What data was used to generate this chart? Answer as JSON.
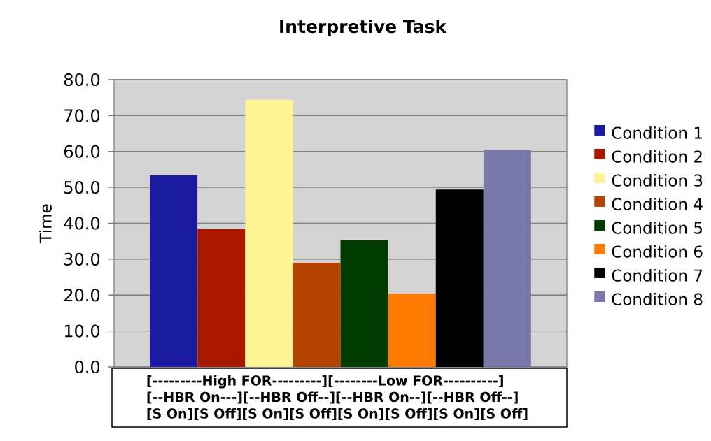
{
  "chart_data": {
    "type": "bar",
    "title": "Interpretive Task",
    "ylabel": "Time",
    "categories": [
      null
    ],
    "series": [
      {
        "name": "Condition 1",
        "color": "#1b1b9f",
        "values": [
          53.4
        ]
      },
      {
        "name": "Condition 2",
        "color": "#aa1800",
        "values": [
          38.4
        ]
      },
      {
        "name": "Condition 3",
        "color": "#fff396",
        "values": [
          74.4
        ]
      },
      {
        "name": "Condition 4",
        "color": "#b54400",
        "values": [
          29.0
        ]
      },
      {
        "name": "Condition 5",
        "color": "#003c00",
        "values": [
          35.3
        ]
      },
      {
        "name": "Condition 6",
        "color": "#ff7b00",
        "values": [
          20.4
        ]
      },
      {
        "name": "Condition 7",
        "color": "#000000",
        "values": [
          49.4
        ]
      },
      {
        "name": "Condition 8",
        "color": "#7a77aa",
        "values": [
          60.5
        ]
      }
    ],
    "ylim": [
      0,
      80
    ],
    "yticks": [
      {
        "value": 0,
        "label": "0.0"
      },
      {
        "value": 10,
        "label": "10.0"
      },
      {
        "value": 20,
        "label": "20.0"
      },
      {
        "value": 30,
        "label": "30.0"
      },
      {
        "value": 40,
        "label": "40.0"
      },
      {
        "value": 50,
        "label": "50.0"
      },
      {
        "value": 60,
        "label": "60.0"
      },
      {
        "value": 70,
        "label": "70.0"
      },
      {
        "value": 80,
        "label": "80.0"
      }
    ],
    "grid": "y",
    "legend": "right",
    "annotations": [
      "[---------High FOR---------][--------Low FOR----------]",
      "[--HBR On---][--HBR Off--][--HBR On--][--HBR Off--]",
      "[S On][S Off][S On][S Off][S On][S Off][S On][S Off]"
    ]
  }
}
